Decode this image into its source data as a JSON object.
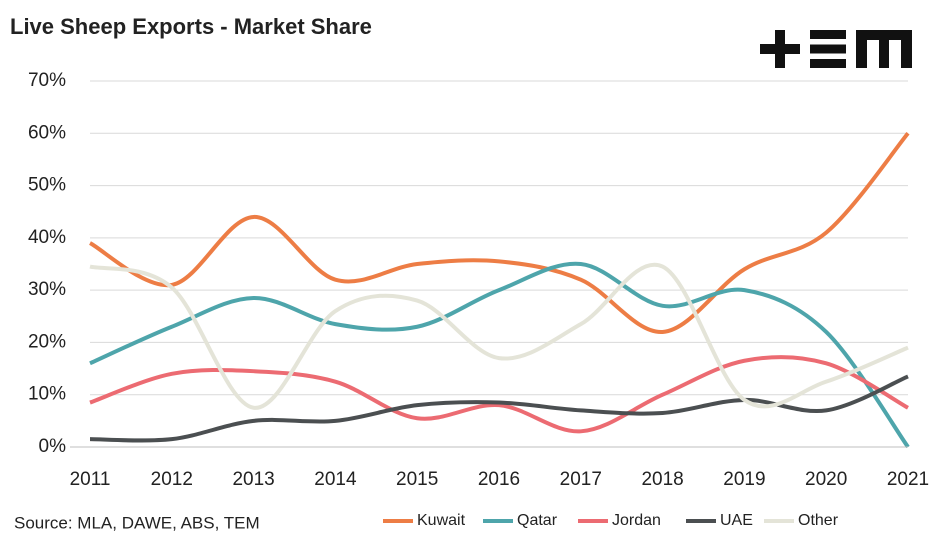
{
  "chart_data": {
    "type": "line",
    "title": "Live Sheep Exports - Market Share",
    "source": "Source: MLA, DAWE, ABS, TEM",
    "categories": [
      "2011",
      "2012",
      "2013",
      "2014",
      "2015",
      "2016",
      "2017",
      "2018",
      "2019",
      "2020",
      "2021"
    ],
    "ylim": [
      0,
      70
    ],
    "yticks": [
      {
        "value": 0,
        "label": "0%"
      },
      {
        "value": 10,
        "label": "10%"
      },
      {
        "value": 20,
        "label": "20%"
      },
      {
        "value": 30,
        "label": "30%"
      },
      {
        "value": 40,
        "label": "40%"
      },
      {
        "value": 50,
        "label": "50%"
      },
      {
        "value": 60,
        "label": "60%"
      },
      {
        "value": 70,
        "label": "70%"
      }
    ],
    "grid": true,
    "smooth": true,
    "legend": "bottom",
    "series": [
      {
        "name": "Kuwait",
        "color": "#ed7d45",
        "values": [
          39,
          31,
          44,
          32,
          35,
          35.5,
          32,
          22,
          34,
          41,
          60
        ]
      },
      {
        "name": "Qatar",
        "color": "#4ea5ab",
        "values": [
          16,
          23,
          28.5,
          23.5,
          23,
          30,
          35,
          27,
          30,
          22,
          0
        ]
      },
      {
        "name": "Jordan",
        "color": "#ec6b72",
        "values": [
          8.5,
          14,
          14.5,
          12.5,
          5.5,
          8,
          3,
          10,
          16.5,
          16,
          7.5
        ]
      },
      {
        "name": "UAE",
        "color": "#4b4f51",
        "values": [
          1.5,
          1.5,
          5,
          5,
          8,
          8.5,
          7,
          6.5,
          9,
          7,
          13.5
        ]
      },
      {
        "name": "Other",
        "color": "#e4e4d8",
        "values": [
          34.5,
          30.5,
          7.5,
          26,
          28,
          17,
          23.5,
          34.5,
          9,
          12.5,
          19
        ]
      }
    ]
  }
}
